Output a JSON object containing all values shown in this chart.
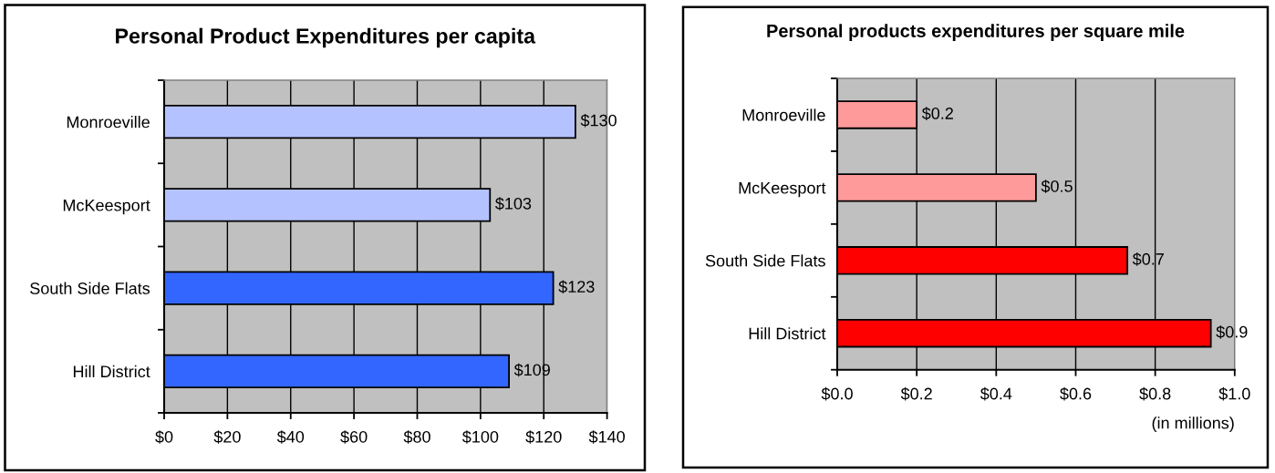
{
  "chart_data": [
    {
      "type": "bar",
      "orientation": "horizontal",
      "title": "Personal Product Expenditures per capita",
      "categories": [
        "Monroeville",
        "McKeesport",
        "South Side Flats",
        "Hill District"
      ],
      "values": [
        130,
        103,
        123,
        109
      ],
      "colors": [
        "#b4c3ff",
        "#b4c3ff",
        "#3366ff",
        "#3366ff"
      ],
      "value_labels": [
        "$130",
        "$103",
        "$123",
        "$109"
      ],
      "xlim": [
        0,
        140
      ],
      "xticks": [
        {
          "value": 0,
          "label": "$0"
        },
        {
          "value": 20,
          "label": "$20"
        },
        {
          "value": 40,
          "label": "$40"
        },
        {
          "value": 60,
          "label": "$60"
        },
        {
          "value": 80,
          "label": "$80"
        },
        {
          "value": 100,
          "label": "$100"
        },
        {
          "value": 120,
          "label": "$120"
        },
        {
          "value": 140,
          "label": "$140"
        }
      ],
      "grid": "x"
    },
    {
      "type": "bar",
      "orientation": "horizontal",
      "title": "Personal products expenditures per square mile",
      "xlabel": "(in millions)",
      "categories": [
        "Monroeville",
        "McKeesport",
        "South Side Flats",
        "Hill District"
      ],
      "values": [
        0.2,
        0.5,
        0.73,
        0.94
      ],
      "colors": [
        "#ff9a9a",
        "#ff9a9a",
        "#ff0000",
        "#ff0000"
      ],
      "value_labels": [
        "$0.2",
        "$0.5",
        "$0.7",
        "$0.9"
      ],
      "xlim": [
        0,
        1.0
      ],
      "xticks": [
        {
          "value": 0,
          "label": "$0.0"
        },
        {
          "value": 0.2,
          "label": "$0.2"
        },
        {
          "value": 0.4,
          "label": "$0.4"
        },
        {
          "value": 0.6,
          "label": "$0.6"
        },
        {
          "value": 0.8,
          "label": "$0.8"
        },
        {
          "value": 1.0,
          "label": "$1.0"
        }
      ],
      "grid": "x"
    }
  ]
}
